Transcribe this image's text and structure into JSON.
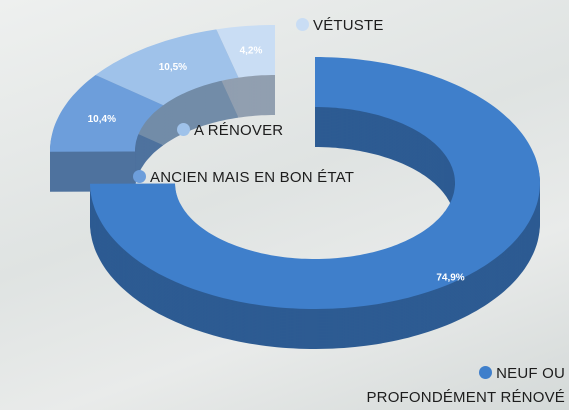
{
  "chart_data": {
    "type": "pie",
    "categories": [
      "NEUF OU PROFONDÉMENT RÉNOVÉ",
      "ANCIEN MAIS EN BON ÉTAT",
      "A RÉNOVER",
      "VÉTUSTE"
    ],
    "values": [
      74.9,
      10.4,
      10.5,
      4.2
    ],
    "value_labels": [
      "74,9%",
      "10,4%",
      "10,5%",
      "4,2%"
    ],
    "colors": [
      "#3f7fcb",
      "#6d9edb",
      "#9fc2ea",
      "#c9ddf4"
    ]
  }
}
